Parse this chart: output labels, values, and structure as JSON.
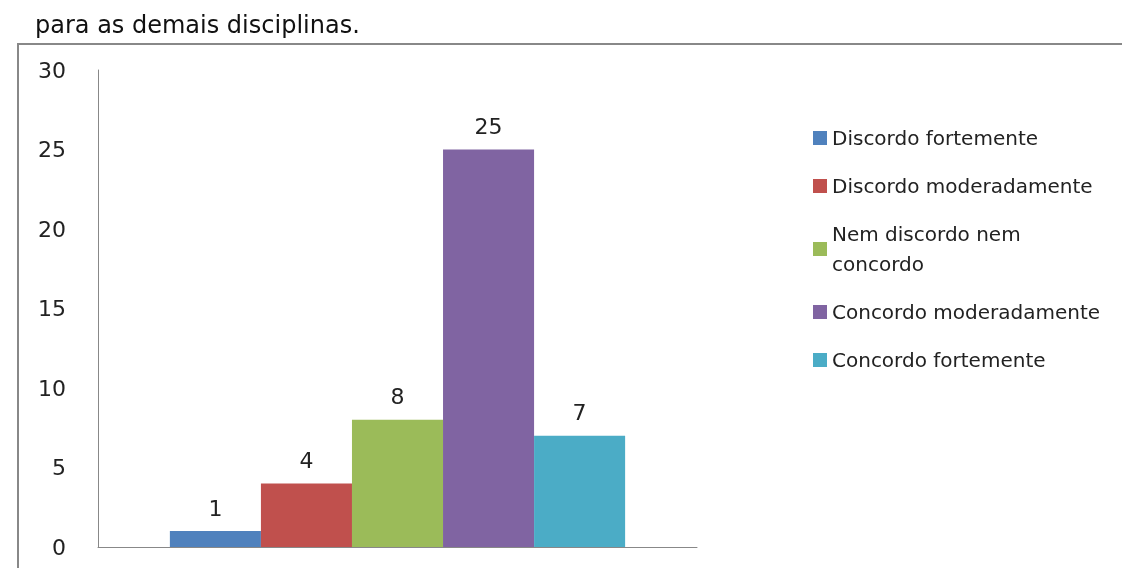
{
  "chart_data": {
    "type": "bar",
    "title": "para as demais disciplinas.",
    "categories": [
      null
    ],
    "series": [
      {
        "name": "Discordo fortemente",
        "color": "#4f81bd",
        "values": [
          1
        ]
      },
      {
        "name": "Discordo moderadamente",
        "color": "#c0504d",
        "values": [
          4
        ]
      },
      {
        "name": "Nem discordo nem concordo",
        "color": "#9bbb59",
        "values": [
          8
        ]
      },
      {
        "name": "Concordo moderadamente",
        "color": "#8064a2",
        "values": [
          25
        ]
      },
      {
        "name": "Concordo fortemente",
        "color": "#4bacc6",
        "values": [
          7
        ]
      }
    ],
    "ylim": [
      0,
      30
    ],
    "yticks": [
      0,
      5,
      10,
      15,
      20,
      25,
      30
    ],
    "grid": false,
    "legend": "right",
    "data_labels": true
  }
}
